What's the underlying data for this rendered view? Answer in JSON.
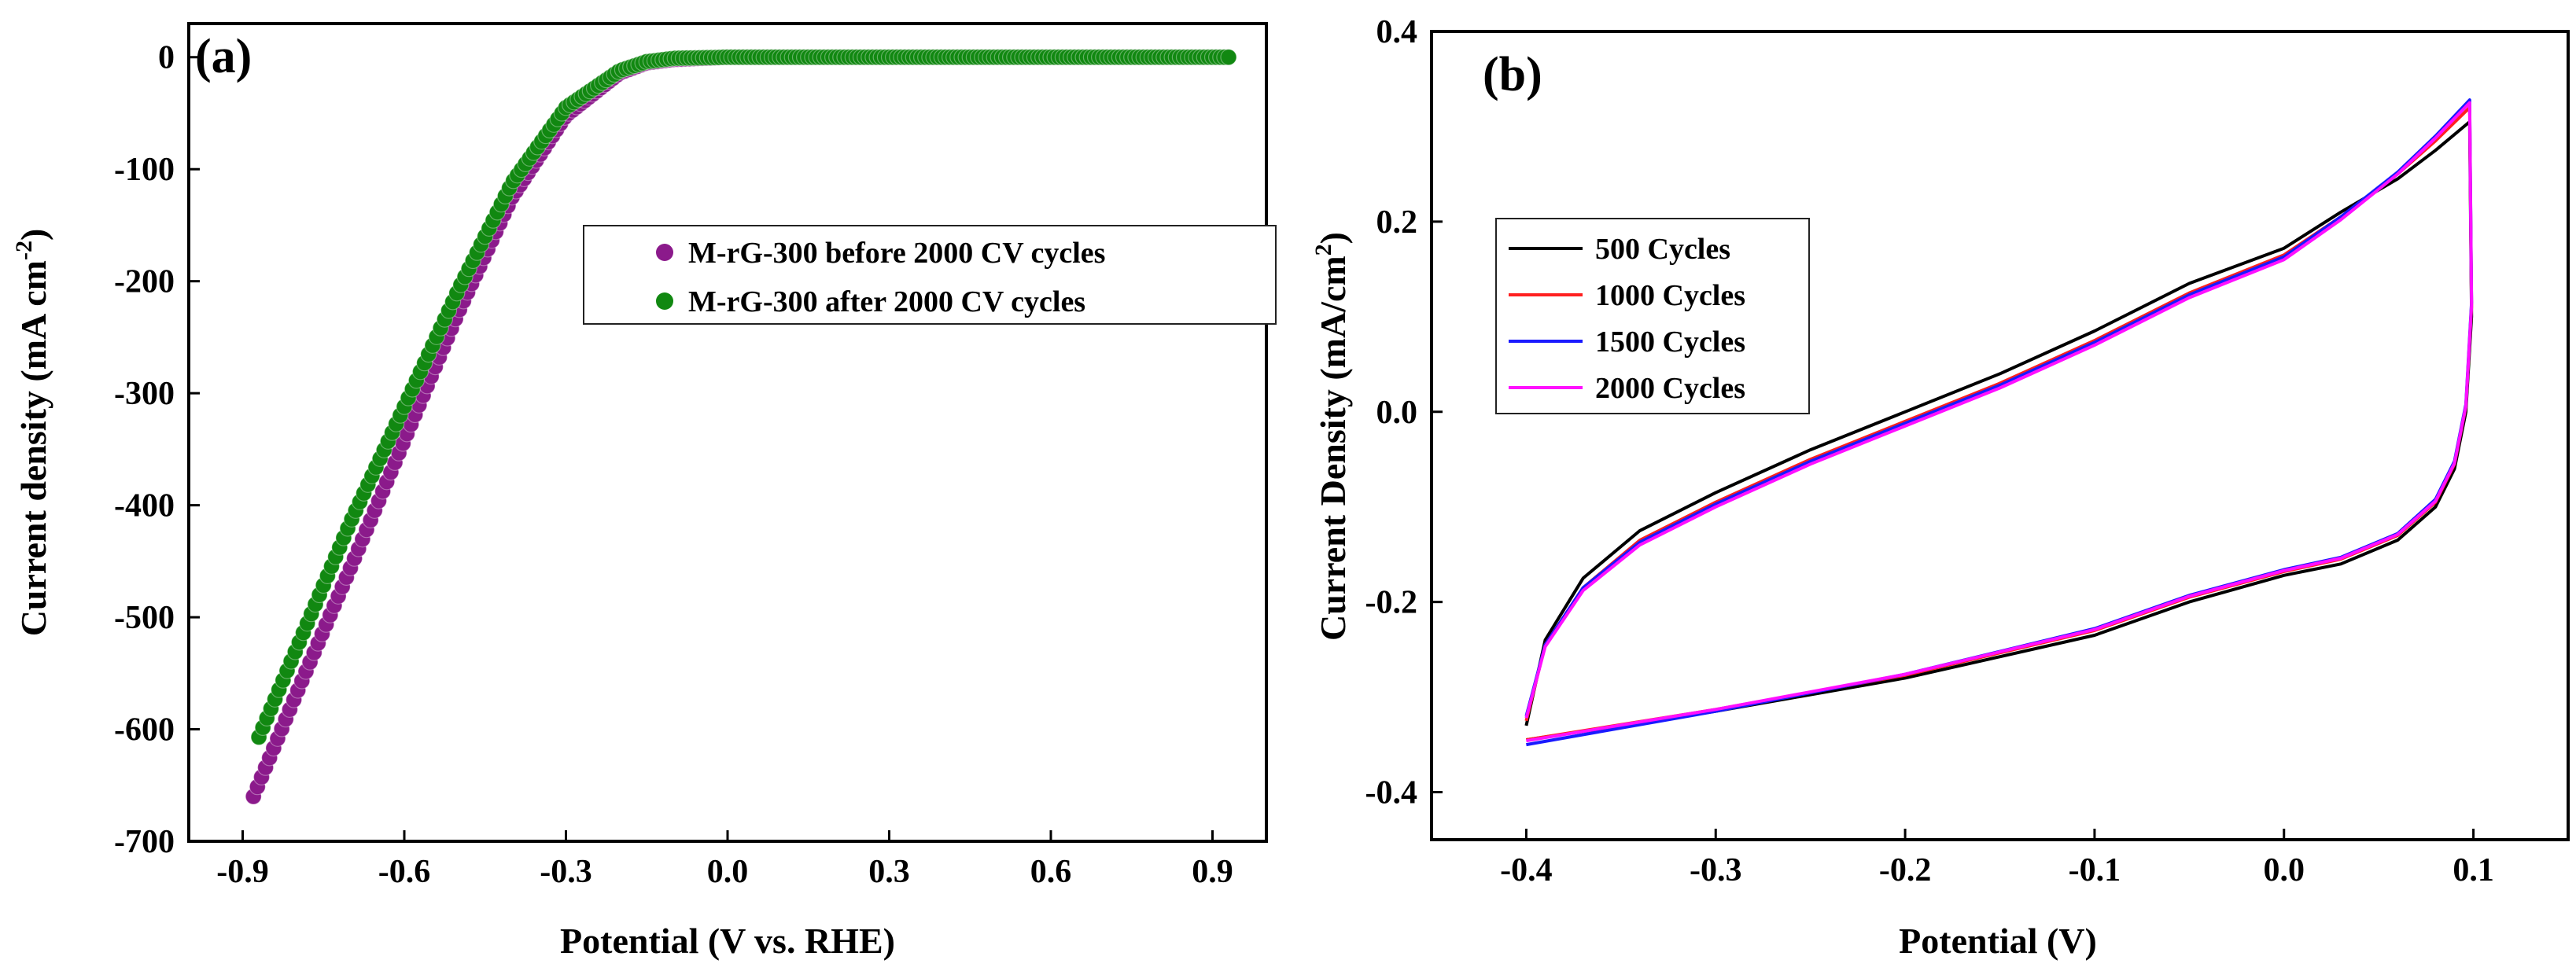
{
  "chart_data": [
    {
      "panel": "(a)",
      "type": "scatter",
      "title": "",
      "xlabel": "Potential (V vs. RHE)",
      "ylabel_main": "Current density (mA cm",
      "ylabel_sup": "-2",
      "ylabel_tail": ")",
      "xlim": [
        -1.0,
        1.0
      ],
      "ylim": [
        -700,
        30
      ],
      "xticks": [
        -0.9,
        -0.6,
        -0.3,
        0.0,
        0.3,
        0.6,
        0.9
      ],
      "xtick_labels": [
        "-0.9",
        "-0.6",
        "-0.3",
        "0.0",
        "0.3",
        "0.6",
        "0.9"
      ],
      "yticks": [
        0,
        -100,
        -200,
        -300,
        -400,
        -500,
        -600,
        -700
      ],
      "ytick_labels": [
        "0",
        "-100",
        "-200",
        "-300",
        "-400",
        "-500",
        "-600",
        "-700"
      ],
      "legend_position": "center-right",
      "series": [
        {
          "name": "M-rG-300 before 2000 CV cycles",
          "color": "#8b1a8b",
          "points": [
            [
              -0.88,
              -660
            ],
            [
              -0.8,
              -568
            ],
            [
              -0.7,
              -456
            ],
            [
              -0.6,
              -342
            ],
            [
              -0.5,
              -228
            ],
            [
              -0.4,
              -125
            ],
            [
              -0.3,
              -52
            ],
            [
              -0.2,
              -14
            ],
            [
              -0.15,
              -5
            ],
            [
              -0.1,
              -2
            ],
            [
              0.0,
              0
            ],
            [
              0.2,
              0
            ],
            [
              0.5,
              0
            ],
            [
              0.93,
              0
            ]
          ]
        },
        {
          "name": "M-rG-300 after 2000 CV cycles",
          "color": "#118811",
          "points": [
            [
              -0.87,
              -607
            ],
            [
              -0.8,
              -528
            ],
            [
              -0.7,
              -415
            ],
            [
              -0.6,
              -312
            ],
            [
              -0.5,
              -208
            ],
            [
              -0.4,
              -112
            ],
            [
              -0.3,
              -45
            ],
            [
              -0.2,
              -12
            ],
            [
              -0.15,
              -4
            ],
            [
              -0.1,
              -1
            ],
            [
              0.0,
              0
            ],
            [
              0.2,
              0
            ],
            [
              0.5,
              0
            ],
            [
              0.93,
              0
            ]
          ]
        }
      ]
    },
    {
      "panel": "(b)",
      "type": "line",
      "title": "",
      "xlabel": "Potential (V)",
      "ylabel_main": "Current Density (mA/cm",
      "ylabel_sup": "2",
      "ylabel_tail": ")",
      "xlim": [
        -0.45,
        0.15
      ],
      "ylim": [
        -0.45,
        0.4
      ],
      "xticks": [
        -0.4,
        -0.3,
        -0.2,
        -0.1,
        0.0,
        0.1
      ],
      "xtick_labels": [
        "-0.4",
        "-0.3",
        "-0.2",
        "-0.1",
        "0.0",
        "0.1"
      ],
      "yticks": [
        -0.4,
        -0.2,
        0.0,
        0.2,
        0.4
      ],
      "ytick_labels": [
        "-0.4",
        "-0.2",
        "0.0",
        "0.2",
        "0.4"
      ],
      "legend_position": "top-left",
      "series": [
        {
          "name": "500 Cycles",
          "color": "#000000",
          "upper": [
            [
              -0.4,
              -0.33
            ],
            [
              -0.39,
              -0.24
            ],
            [
              -0.37,
              -0.175
            ],
            [
              -0.34,
              -0.125
            ],
            [
              -0.3,
              -0.085
            ],
            [
              -0.25,
              -0.04
            ],
            [
              -0.2,
              0.0
            ],
            [
              -0.15,
              0.04
            ],
            [
              -0.1,
              0.085
            ],
            [
              -0.05,
              0.135
            ],
            [
              0.0,
              0.172
            ],
            [
              0.03,
              0.21
            ],
            [
              0.06,
              0.245
            ],
            [
              0.08,
              0.275
            ],
            [
              0.098,
              0.305
            ]
          ],
          "lower": [
            [
              0.098,
              0.305
            ],
            [
              0.099,
              0.1
            ],
            [
              0.096,
              0.0
            ],
            [
              0.09,
              -0.06
            ],
            [
              0.08,
              -0.1
            ],
            [
              0.06,
              -0.135
            ],
            [
              0.03,
              -0.16
            ],
            [
              0.0,
              -0.172
            ],
            [
              -0.05,
              -0.2
            ],
            [
              -0.1,
              -0.235
            ],
            [
              -0.2,
              -0.28
            ],
            [
              -0.3,
              -0.315
            ],
            [
              -0.4,
              -0.345
            ]
          ]
        },
        {
          "name": "1000 Cycles",
          "color": "#ff2020",
          "upper": [
            [
              -0.4,
              -0.325
            ],
            [
              -0.39,
              -0.245
            ],
            [
              -0.37,
              -0.185
            ],
            [
              -0.34,
              -0.135
            ],
            [
              -0.3,
              -0.095
            ],
            [
              -0.25,
              -0.05
            ],
            [
              -0.2,
              -0.01
            ],
            [
              -0.15,
              0.03
            ],
            [
              -0.1,
              0.075
            ],
            [
              -0.05,
              0.125
            ],
            [
              0.0,
              0.165
            ],
            [
              0.03,
              0.205
            ],
            [
              0.06,
              0.25
            ],
            [
              0.08,
              0.285
            ],
            [
              0.098,
              0.32
            ]
          ],
          "lower": [
            [
              0.098,
              0.32
            ],
            [
              0.099,
              0.11
            ],
            [
              0.096,
              0.005
            ],
            [
              0.09,
              -0.055
            ],
            [
              0.08,
              -0.095
            ],
            [
              0.06,
              -0.13
            ],
            [
              0.03,
              -0.155
            ],
            [
              0.0,
              -0.168
            ],
            [
              -0.05,
              -0.195
            ],
            [
              -0.1,
              -0.23
            ],
            [
              -0.2,
              -0.277
            ],
            [
              -0.3,
              -0.313
            ],
            [
              -0.4,
              -0.345
            ]
          ]
        },
        {
          "name": "1500 Cycles",
          "color": "#1a1aff",
          "upper": [
            [
              -0.4,
              -0.32
            ],
            [
              -0.39,
              -0.245
            ],
            [
              -0.37,
              -0.185
            ],
            [
              -0.34,
              -0.137
            ],
            [
              -0.3,
              -0.097
            ],
            [
              -0.25,
              -0.052
            ],
            [
              -0.2,
              -0.012
            ],
            [
              -0.15,
              0.028
            ],
            [
              -0.1,
              0.073
            ],
            [
              -0.05,
              0.123
            ],
            [
              0.0,
              0.163
            ],
            [
              0.03,
              0.205
            ],
            [
              0.06,
              0.252
            ],
            [
              0.08,
              0.29
            ],
            [
              0.098,
              0.328
            ]
          ],
          "lower": [
            [
              0.098,
              0.328
            ],
            [
              0.099,
              0.115
            ],
            [
              0.096,
              0.008
            ],
            [
              0.09,
              -0.052
            ],
            [
              0.08,
              -0.092
            ],
            [
              0.06,
              -0.128
            ],
            [
              0.03,
              -0.153
            ],
            [
              0.0,
              -0.166
            ],
            [
              -0.05,
              -0.193
            ],
            [
              -0.1,
              -0.228
            ],
            [
              -0.2,
              -0.276
            ],
            [
              -0.3,
              -0.315
            ],
            [
              -0.4,
              -0.35
            ]
          ]
        },
        {
          "name": "2000 Cycles",
          "color": "#ff10ff",
          "upper": [
            [
              -0.4,
              -0.322
            ],
            [
              -0.39,
              -0.247
            ],
            [
              -0.37,
              -0.188
            ],
            [
              -0.34,
              -0.14
            ],
            [
              -0.3,
              -0.1
            ],
            [
              -0.25,
              -0.055
            ],
            [
              -0.2,
              -0.015
            ],
            [
              -0.15,
              0.025
            ],
            [
              -0.1,
              0.07
            ],
            [
              -0.05,
              0.12
            ],
            [
              0.0,
              0.16
            ],
            [
              0.03,
              0.202
            ],
            [
              0.06,
              0.25
            ],
            [
              0.08,
              0.288
            ],
            [
              0.098,
              0.325
            ]
          ],
          "lower": [
            [
              0.098,
              0.325
            ],
            [
              0.099,
              0.112
            ],
            [
              0.096,
              0.006
            ],
            [
              0.09,
              -0.054
            ],
            [
              0.08,
              -0.094
            ],
            [
              0.06,
              -0.129
            ],
            [
              0.03,
              -0.154
            ],
            [
              0.0,
              -0.167
            ],
            [
              -0.05,
              -0.194
            ],
            [
              -0.1,
              -0.229
            ],
            [
              -0.2,
              -0.276
            ],
            [
              -0.3,
              -0.313
            ],
            [
              -0.4,
              -0.346
            ]
          ]
        }
      ]
    }
  ]
}
